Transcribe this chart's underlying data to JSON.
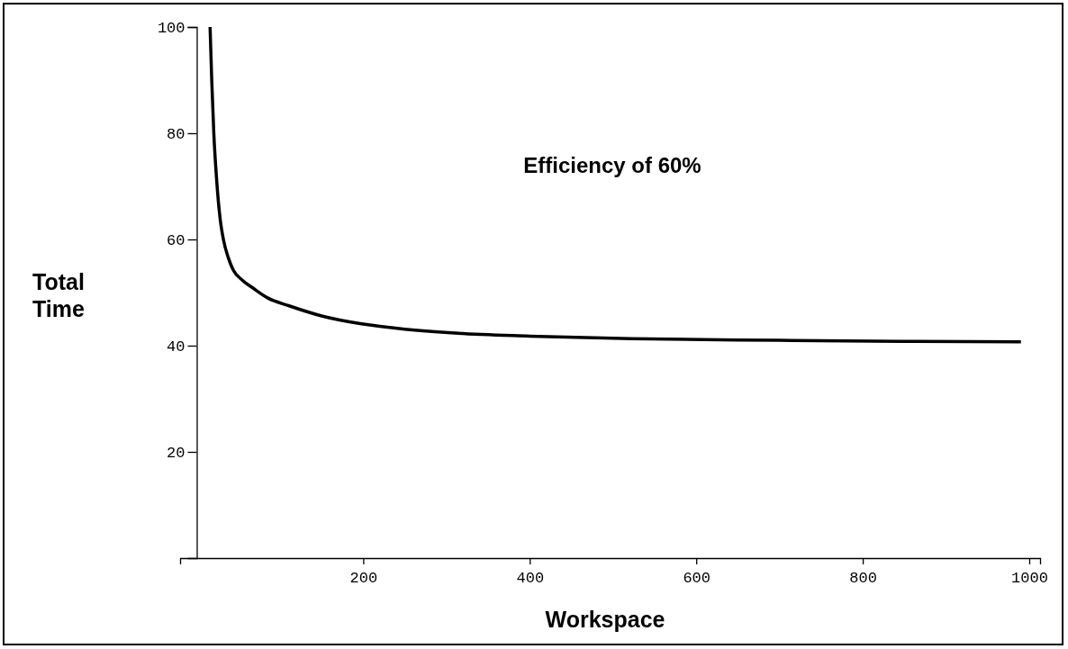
{
  "chart_data": {
    "type": "line",
    "xlabel": "Workspace",
    "ylabel": "Total Time",
    "annotations": [
      "Efficiency of 60%"
    ],
    "xlim": [
      -20,
      1013
    ],
    "ylim": [
      0,
      100
    ],
    "xticks": [
      200,
      400,
      600,
      800,
      1000
    ],
    "yticks": [
      20,
      40,
      60,
      80,
      100
    ],
    "series": [
      {
        "color": "#000000",
        "x": [
          16,
          18,
          20.5,
          24,
          28,
          32,
          38,
          44,
          55,
          68,
          85,
          111,
          150,
          198,
          250,
          306,
          400,
          522,
          700,
          846,
          990
        ],
        "values": [
          100,
          90,
          80,
          71,
          64,
          60,
          56.5,
          54.2,
          52.3,
          50.8,
          49,
          47.5,
          45.6,
          44.1,
          43.1,
          42.4,
          41.8,
          41.3,
          41,
          40.8,
          40.7
        ]
      }
    ],
    "marker": "none",
    "line_style": "solid"
  }
}
